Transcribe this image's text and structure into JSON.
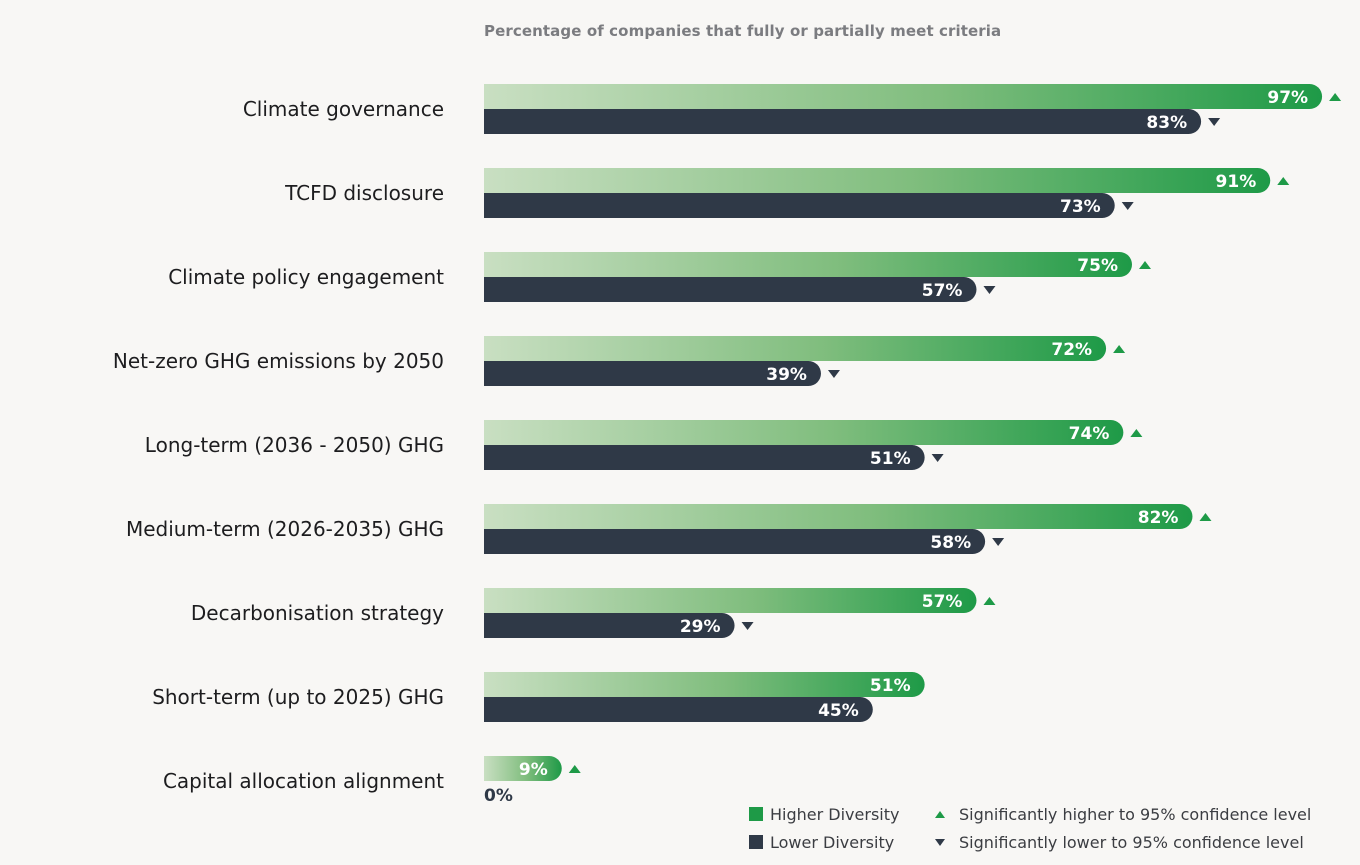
{
  "chart_data": {
    "type": "bar",
    "orientation": "horizontal",
    "title": "Percentage of companies that fully or partially meet criteria",
    "xlabel": "",
    "ylabel": "",
    "xlim": [
      0,
      100
    ],
    "grid": false,
    "categories": [
      "Climate governance",
      "TCFD disclosure",
      "Climate policy engagement",
      "Net-zero GHG emissions by 2050",
      "Long-term (2036 - 2050) GHG",
      "Medium-term (2026-2035) GHG",
      "Decarbonisation strategy",
      "Short-term (up to 2025) GHG",
      "Capital allocation alignment"
    ],
    "series": [
      {
        "name": "Higher Diversity",
        "color": "#1e9a47",
        "gradient_start": "#c9dfc2",
        "values": [
          97,
          91,
          75,
          72,
          74,
          82,
          57,
          51,
          9
        ],
        "labels": [
          "97%",
          "91%",
          "75%",
          "72%",
          "74%",
          "82%",
          "57%",
          "51%",
          "9%"
        ],
        "significance": [
          "higher",
          "higher",
          "higher",
          "higher",
          "higher",
          "higher",
          "higher",
          "none",
          "higher"
        ]
      },
      {
        "name": "Lower Diversity",
        "color": "#2f3947",
        "values": [
          83,
          73,
          57,
          39,
          51,
          58,
          29,
          45,
          0
        ],
        "labels": [
          "83%",
          "73%",
          "57%",
          "39%",
          "51%",
          "58%",
          "29%",
          "45%",
          "0%"
        ],
        "significance": [
          "lower",
          "lower",
          "lower",
          "lower",
          "lower",
          "lower",
          "lower",
          "none",
          "none"
        ]
      }
    ],
    "legend": {
      "placement": "bottom-right",
      "series": [
        {
          "label": "Higher Diversity",
          "color": "#1e9a47"
        },
        {
          "label": "Lower Diversity",
          "color": "#2f3947"
        }
      ],
      "markers": [
        {
          "symbol": "triangle-up",
          "color": "#1e9a47",
          "label": "Significantly higher to 95% confidence level"
        },
        {
          "symbol": "triangle-down",
          "color": "#2f3947",
          "label": "Significantly lower to 95% confidence level"
        }
      ]
    }
  }
}
